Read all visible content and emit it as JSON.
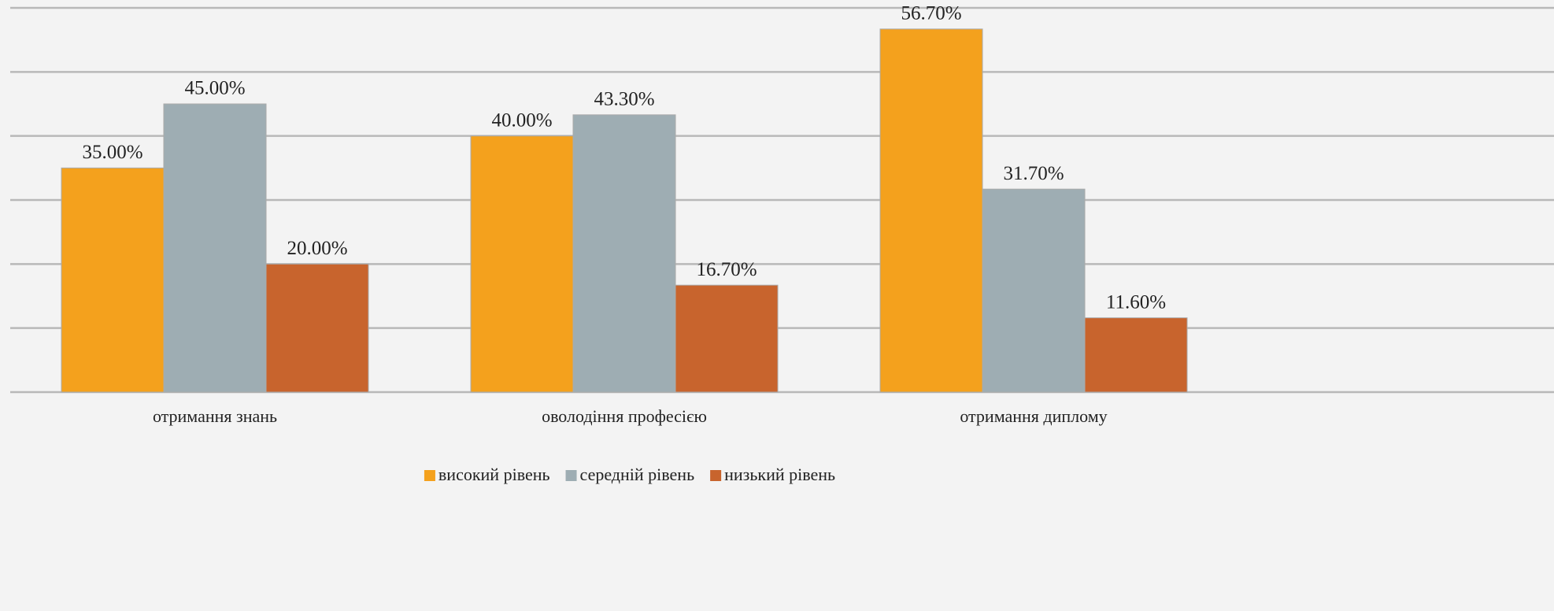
{
  "chart_data": {
    "type": "bar",
    "categories": [
      "отримання знань",
      "оволодіння професією",
      "отримання диплому"
    ],
    "series": [
      {
        "name": "високий рівень",
        "color": "#f4a11d",
        "values": [
          35,
          40,
          56.7
        ],
        "value_labels": [
          "35.00%",
          "40.00%",
          "56.70%"
        ]
      },
      {
        "name": "середній рівень",
        "color": "#9eadb3",
        "values": [
          45,
          43.3,
          31.7
        ],
        "value_labels": [
          "45.00%",
          "43.30%",
          "31.70%"
        ]
      },
      {
        "name": "низький рівень",
        "color": "#c8642d",
        "values": [
          20,
          16.7,
          11.6
        ],
        "value_labels": [
          "20.00%",
          "16.70%",
          "11.60%"
        ]
      }
    ],
    "ylim": [
      0,
      60
    ],
    "yticks": [
      0,
      10,
      20,
      30,
      40,
      50,
      60
    ],
    "grid": true
  }
}
